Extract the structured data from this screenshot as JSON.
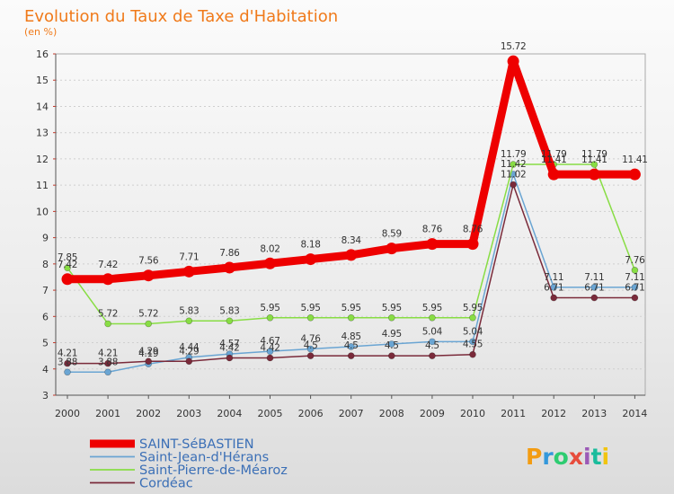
{
  "chart_data": {
    "type": "line",
    "title": "Evolution du Taux de Taxe d'Habitation",
    "subtitle": "(en %)",
    "xlabel": "",
    "ylabel": "",
    "ylim": [
      3,
      16
    ],
    "yticks": [
      3,
      4,
      5,
      6,
      7,
      8,
      9,
      10,
      11,
      12,
      13,
      14,
      15,
      16
    ],
    "grid": true,
    "legend_position": "bottom-left",
    "categories": [
      "2000",
      "2001",
      "2002",
      "2003",
      "2004",
      "2005",
      "2006",
      "2007",
      "2008",
      "2009",
      "2010",
      "2011",
      "2012",
      "2013",
      "2014"
    ],
    "series": [
      {
        "name": "SAINT-SéBASTIEN",
        "color": "#ee0000",
        "emphasis": true,
        "values": [
          7.42,
          7.42,
          7.56,
          7.71,
          7.86,
          8.02,
          8.18,
          8.34,
          8.59,
          8.76,
          8.76,
          15.72,
          11.41,
          11.41,
          11.41
        ],
        "labels": [
          "7.42",
          "7.42",
          "7.56",
          "7.71",
          "7.86",
          "8.02",
          "8.18",
          "8.34",
          "8.59",
          "8.76",
          "8.76",
          "15.72",
          "11.41",
          "11.41",
          "11.41"
        ]
      },
      {
        "name": "Saint-Jean-d'Hérans",
        "color": "#6aa5d3",
        "emphasis": false,
        "values": [
          3.88,
          3.88,
          4.19,
          4.44,
          4.57,
          4.67,
          4.76,
          4.85,
          4.95,
          5.04,
          5.04,
          11.42,
          7.11,
          7.11,
          7.11
        ],
        "labels": [
          "3.88",
          "3.88",
          "4.19",
          "4.44",
          "4.57",
          "4.67",
          "4.76",
          "4.85",
          "4.95",
          "5.04",
          "5.04",
          "11.42",
          "7.11",
          "7.11",
          "7.11"
        ]
      },
      {
        "name": "Saint-Pierre-de-Méaroz",
        "color": "#88dd44",
        "emphasis": false,
        "values": [
          7.85,
          5.72,
          5.72,
          5.83,
          5.83,
          5.95,
          5.95,
          5.95,
          5.95,
          5.95,
          5.95,
          11.79,
          11.79,
          11.79,
          7.76
        ],
        "labels": [
          "7.85",
          "5.72",
          "5.72",
          "5.83",
          "5.83",
          "5.95",
          "5.95",
          "5.95",
          "5.95",
          "5.95",
          "5.95",
          "11.79",
          "11.79",
          "11.79",
          "7.76"
        ]
      },
      {
        "name": "Cordéac",
        "color": "#7a2a3a",
        "emphasis": false,
        "values": [
          4.21,
          4.21,
          4.29,
          4.29,
          4.42,
          4.42,
          4.5,
          4.5,
          4.5,
          4.5,
          4.55,
          11.02,
          6.71,
          6.71,
          6.71
        ],
        "labels": [
          "4.21",
          "4.21",
          "4.29",
          "4.29",
          "4.42",
          "4.42",
          "4.5",
          "4.5",
          "4.5",
          "4.5",
          "4.55",
          "11.02",
          "6.71",
          "6.71",
          "6.71"
        ]
      }
    ]
  },
  "branding": {
    "logo_text": "Proxiti",
    "logo_colors": [
      "#f39c12",
      "#3498db",
      "#2ecc71",
      "#e74c3c",
      "#9b59b6",
      "#1abc9c",
      "#f1c40f"
    ]
  }
}
